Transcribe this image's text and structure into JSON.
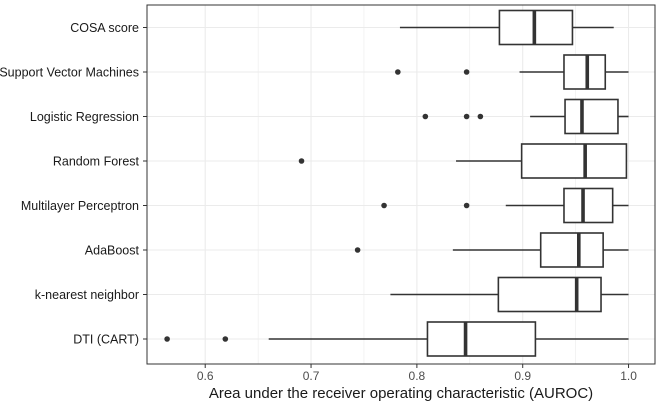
{
  "chart_data": {
    "type": "boxplot",
    "orientation": "horizontal",
    "title": "",
    "xlabel": "Area under the receiver operating characteristic (AUROC)",
    "ylabel": "",
    "xlim": [
      0.545,
      1.025
    ],
    "xticks": [
      0.6,
      0.7,
      0.8,
      0.9,
      1.0
    ],
    "xtick_labels": [
      "0.6",
      "0.7",
      "0.8",
      "0.9",
      "1.0"
    ],
    "grid": true,
    "categories": [
      "COSA score",
      "Support Vector Machines",
      "Logistic Regression",
      "Random Forest",
      "Multilayer Perceptron",
      "AdaBoost",
      "k-nearest neighbor",
      "DTI (CART)"
    ],
    "boxes": [
      {
        "name": "COSA score",
        "whisker_low": 0.784,
        "q1": 0.878,
        "median": 0.911,
        "q3": 0.947,
        "whisker_high": 0.986,
        "outliers": []
      },
      {
        "name": "Support Vector Machines",
        "whisker_low": 0.897,
        "q1": 0.939,
        "median": 0.961,
        "q3": 0.978,
        "whisker_high": 1.0,
        "outliers": [
          0.782,
          0.847
        ]
      },
      {
        "name": "Logistic Regression",
        "whisker_low": 0.907,
        "q1": 0.94,
        "median": 0.956,
        "q3": 0.99,
        "whisker_high": 1.0,
        "outliers": [
          0.808,
          0.847,
          0.86
        ]
      },
      {
        "name": "Random Forest",
        "whisker_low": 0.837,
        "q1": 0.899,
        "median": 0.959,
        "q3": 0.998,
        "whisker_high": 0.998,
        "outliers": [
          0.691
        ]
      },
      {
        "name": "Multilayer Perceptron",
        "whisker_low": 0.884,
        "q1": 0.939,
        "median": 0.957,
        "q3": 0.985,
        "whisker_high": 1.0,
        "outliers": [
          0.769,
          0.847
        ]
      },
      {
        "name": "AdaBoost",
        "whisker_low": 0.834,
        "q1": 0.917,
        "median": 0.953,
        "q3": 0.976,
        "whisker_high": 1.0,
        "outliers": [
          0.744
        ]
      },
      {
        "name": "k-nearest neighbor",
        "whisker_low": 0.775,
        "q1": 0.877,
        "median": 0.951,
        "q3": 0.974,
        "whisker_high": 1.0,
        "outliers": []
      },
      {
        "name": "DTI (CART)",
        "whisker_low": 0.66,
        "q1": 0.81,
        "median": 0.846,
        "q3": 0.912,
        "whisker_high": 1.0,
        "outliers": [
          0.564,
          0.619
        ]
      }
    ],
    "colors": {
      "panel_border": "#333333",
      "grid": "#ebebeb",
      "box_stroke": "#333333",
      "box_fill": "#ffffff",
      "outlier": "#333333"
    }
  }
}
